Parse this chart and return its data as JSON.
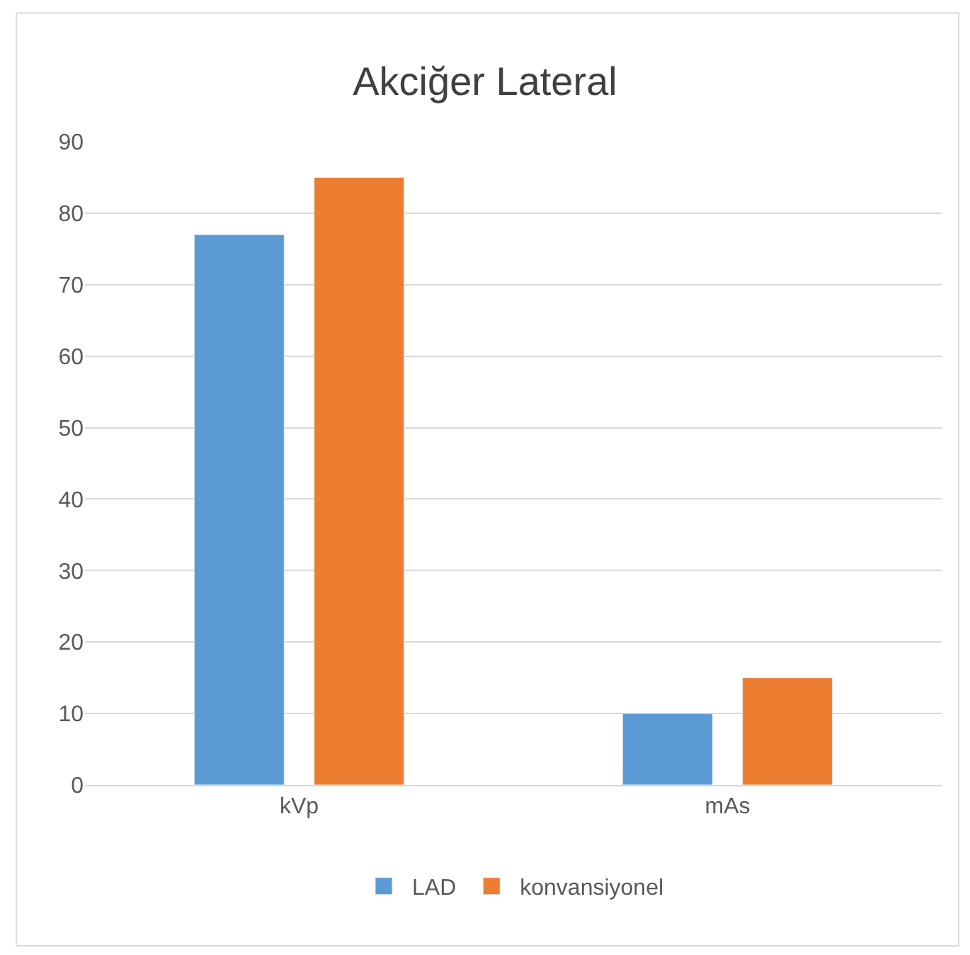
{
  "chart_data": {
    "type": "bar",
    "title": "Akciğer Lateral",
    "categories": [
      "kVp",
      "mAs"
    ],
    "series": [
      {
        "name": "LAD",
        "color": "#5b9bd5",
        "values": [
          77,
          10
        ]
      },
      {
        "name": "konvansiyonel",
        "color": "#ed7d31",
        "values": [
          85,
          15
        ]
      }
    ],
    "ylim": [
      0,
      90
    ],
    "yticks": [
      0,
      10,
      20,
      30,
      40,
      50,
      60,
      70,
      80,
      90
    ],
    "grid": "y",
    "legend": "bottom"
  }
}
